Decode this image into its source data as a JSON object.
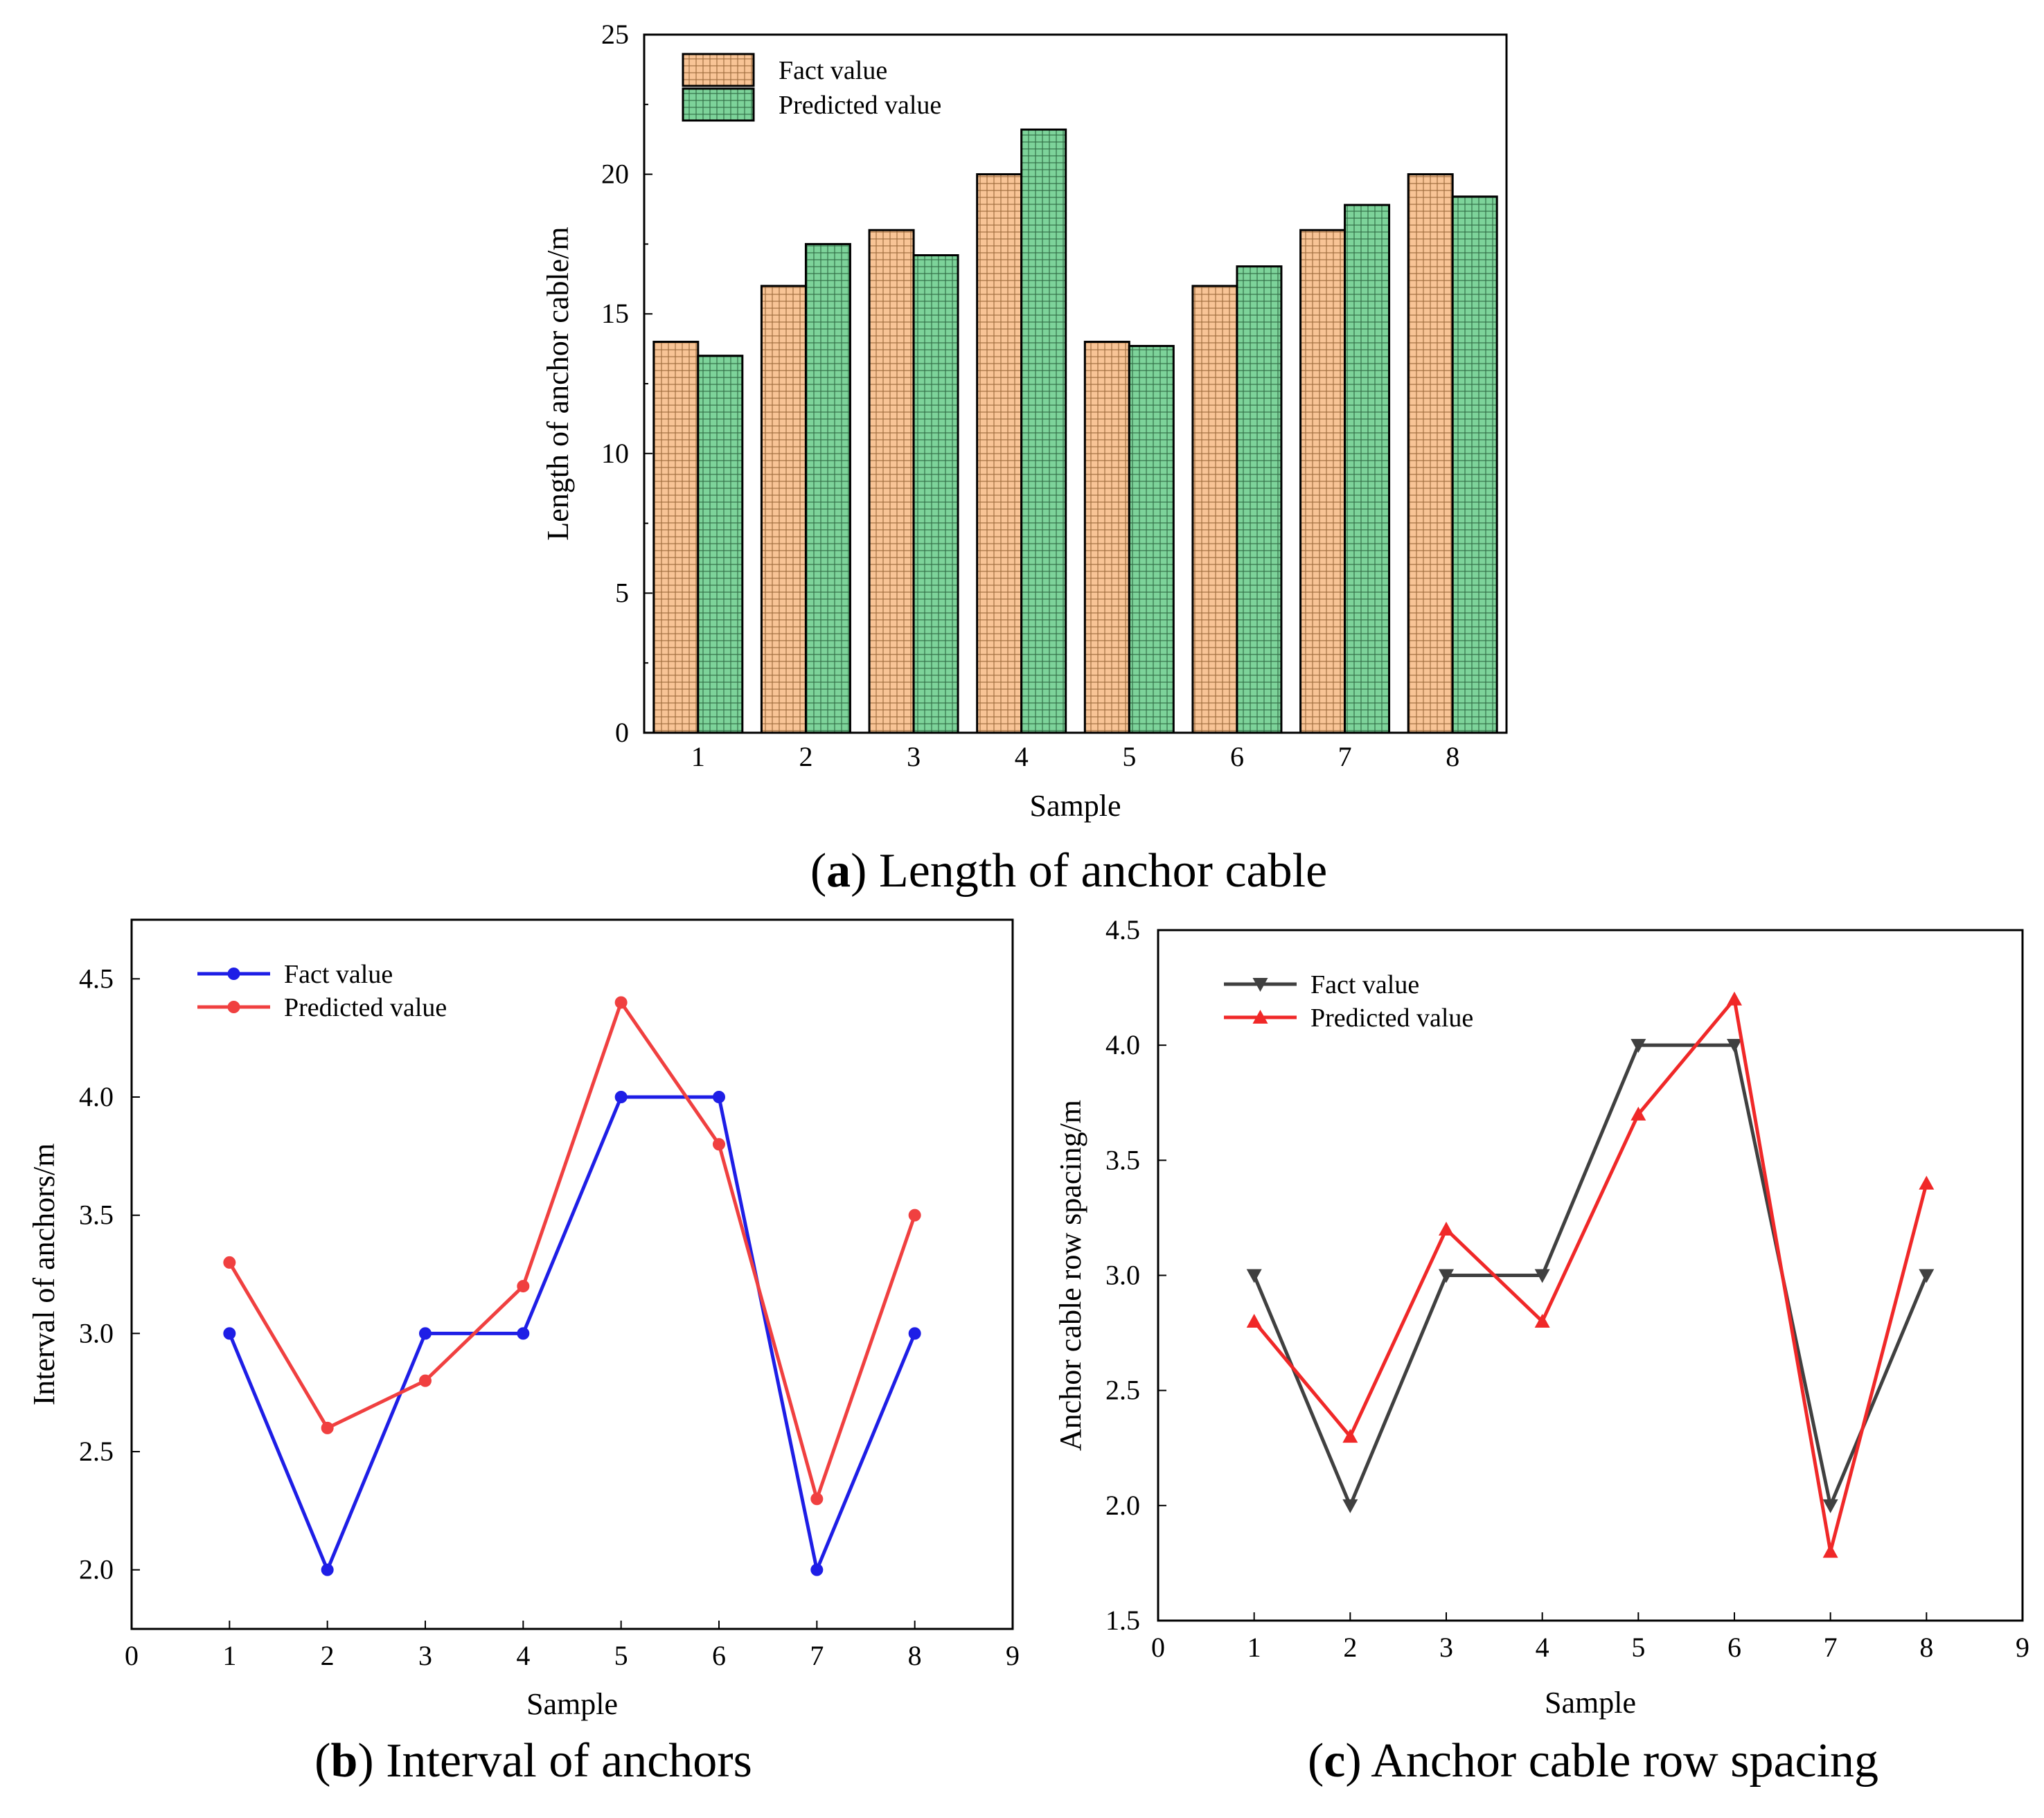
{
  "captions": {
    "a": {
      "letter": "a",
      "text": " Length of anchor cable"
    },
    "b": {
      "letter": "b",
      "text": " Interval of anchors"
    },
    "c": {
      "letter": "c",
      "text": " Anchor cable row spacing"
    }
  },
  "colors": {
    "fact_bar": "#F8C496",
    "predicted_bar": "#7DD39A",
    "fact_line_b": "#1E1EE6",
    "predicted_line_b": "#F04040",
    "fact_line_c": "#404040",
    "predicted_line_c": "#F02828"
  },
  "chart_data": [
    {
      "id": "a",
      "type": "bar",
      "title": "",
      "xlabel": "Sample",
      "ylabel": "Length of anchor cable/m",
      "categories": [
        "1",
        "2",
        "3",
        "4",
        "5",
        "6",
        "7",
        "8"
      ],
      "series": [
        {
          "name": "Fact value",
          "values": [
            14,
            16,
            18,
            20,
            14,
            16,
            18,
            20
          ]
        },
        {
          "name": "Predicted value",
          "values": [
            13.5,
            17.5,
            17.1,
            21.6,
            13.85,
            16.7,
            18.9,
            19.2
          ]
        }
      ],
      "ylim": [
        0,
        25
      ],
      "yticks": [
        "0",
        "5",
        "10",
        "15",
        "20",
        "25"
      ],
      "legend": "top-left",
      "grid": false
    },
    {
      "id": "b",
      "type": "line",
      "title": "",
      "xlabel": "Sample",
      "ylabel": "Interval of anchors/m",
      "x": [
        1,
        2,
        3,
        4,
        5,
        6,
        7,
        8
      ],
      "series": [
        {
          "name": "Fact value",
          "marker": "circle",
          "values": [
            3.0,
            2.0,
            3.0,
            3.0,
            4.0,
            4.0,
            2.0,
            3.0
          ]
        },
        {
          "name": "Predicted value",
          "marker": "circle",
          "values": [
            3.3,
            2.6,
            2.8,
            3.2,
            4.4,
            3.8,
            2.3,
            3.5
          ]
        }
      ],
      "xlim": [
        0,
        9
      ],
      "ylim": [
        1.75,
        4.75
      ],
      "xticks": [
        "0",
        "1",
        "2",
        "3",
        "4",
        "5",
        "6",
        "7",
        "8",
        "9"
      ],
      "yticks": [
        "2.0",
        "2.5",
        "3.0",
        "3.5",
        "4.0",
        "4.5"
      ],
      "legend": "top-left",
      "grid": false
    },
    {
      "id": "c",
      "type": "line",
      "title": "",
      "xlabel": "Sample",
      "ylabel": "Anchor cable row spacing/m",
      "x": [
        1,
        2,
        3,
        4,
        5,
        6,
        7,
        8
      ],
      "series": [
        {
          "name": "Fact value",
          "marker": "triangle-down",
          "values": [
            3.0,
            2.0,
            3.0,
            3.0,
            4.0,
            4.0,
            2.0,
            3.0
          ]
        },
        {
          "name": "Predicted value",
          "marker": "triangle-up",
          "values": [
            2.8,
            2.3,
            3.2,
            2.8,
            3.7,
            4.2,
            1.8,
            3.4
          ]
        }
      ],
      "xlim": [
        0,
        9
      ],
      "ylim": [
        1.5,
        4.5
      ],
      "xticks": [
        "0",
        "1",
        "2",
        "3",
        "4",
        "5",
        "6",
        "7",
        "8",
        "9"
      ],
      "yticks": [
        "1.5",
        "2.0",
        "2.5",
        "3.0",
        "3.5",
        "4.0",
        "4.5"
      ],
      "legend": "top-left",
      "grid": false
    }
  ]
}
